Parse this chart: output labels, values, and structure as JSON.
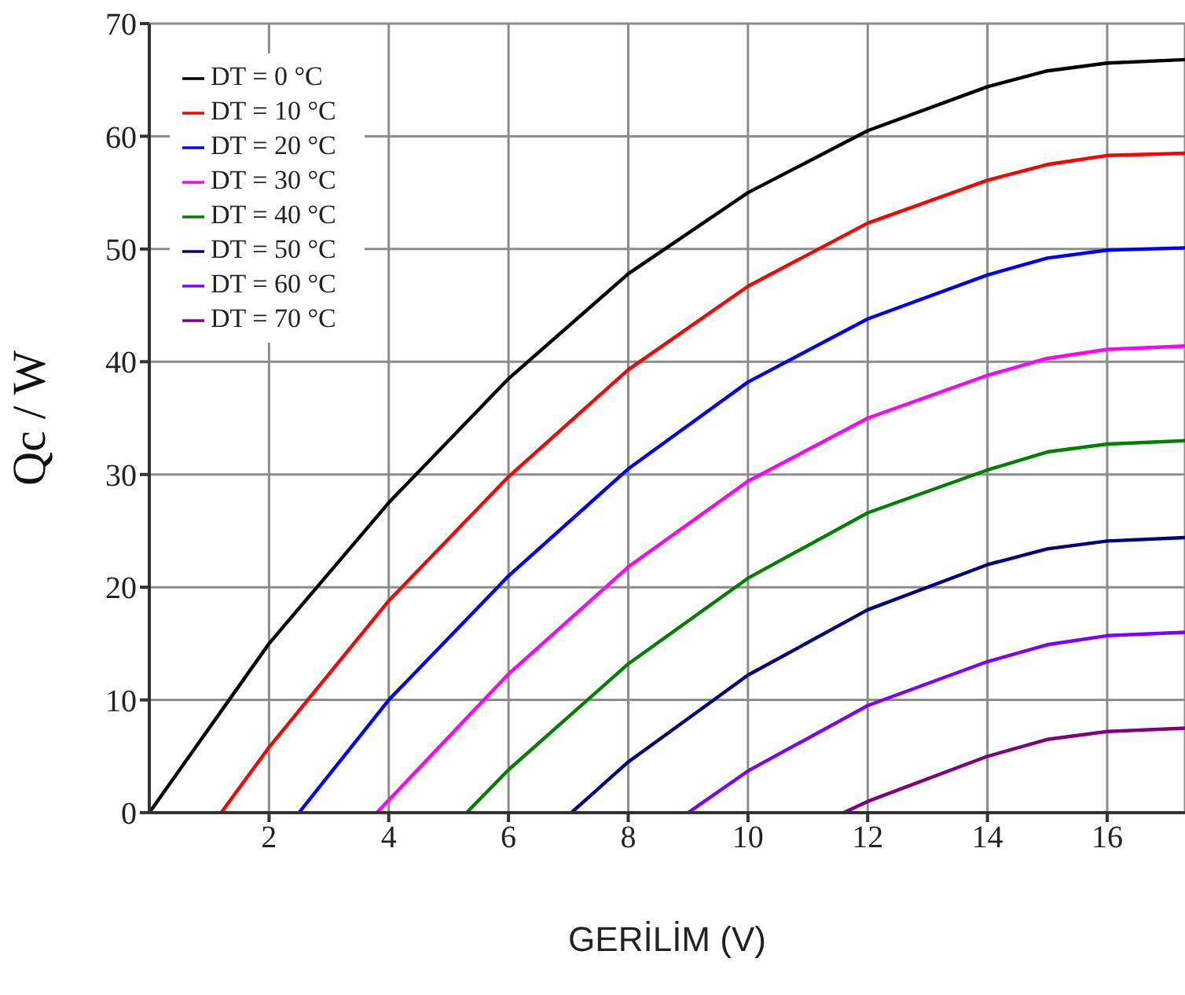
{
  "chart_data": {
    "type": "line",
    "xlabel": "GERİLİM (V)",
    "ylabel": "Qc / W",
    "xlim": [
      0,
      17.3
    ],
    "xticks": [
      2,
      4,
      6,
      8,
      10,
      12,
      14,
      16
    ],
    "ylim": [
      0,
      70
    ],
    "yticks": [
      0,
      10,
      20,
      30,
      40,
      50,
      60,
      70
    ],
    "grid": true,
    "legend": "top left",
    "marker": "none",
    "line_style": "solid",
    "series": [
      {
        "name": "DT = 0 °C",
        "color": "#000000",
        "x": [
          0,
          2,
          4,
          6,
          8,
          10,
          12,
          14,
          15,
          16,
          17.3
        ],
        "values": [
          0,
          15,
          27.5,
          38.5,
          47.8,
          55,
          60.5,
          64.4,
          65.8,
          66.5,
          66.8
        ]
      },
      {
        "name": "DT = 10 °C",
        "color": "#ff0000",
        "x": [
          1.2,
          2,
          4,
          6,
          8,
          10,
          12,
          14,
          15,
          16,
          17.3
        ],
        "values": [
          0,
          5.8,
          18.8,
          29.8,
          39.3,
          46.7,
          52.3,
          56.1,
          57.5,
          58.3,
          58.5
        ]
      },
      {
        "name": "DT = 20 °C",
        "color": "#0000ff",
        "x": [
          2.5,
          4,
          6,
          8,
          10,
          12,
          14,
          15,
          16,
          17.3
        ],
        "values": [
          0,
          10,
          21,
          30.5,
          38.2,
          43.8,
          47.7,
          49.2,
          49.9,
          50.1
        ]
      },
      {
        "name": "DT = 30 °C",
        "color": "#ff00ff",
        "x": [
          3.8,
          6,
          8,
          10,
          12,
          14,
          15,
          16,
          17.3
        ],
        "values": [
          0,
          12.3,
          21.8,
          29.4,
          35,
          38.8,
          40.3,
          41.1,
          41.4
        ]
      },
      {
        "name": "DT = 40 °C",
        "color": "#008000",
        "x": [
          5.3,
          6,
          8,
          10,
          12,
          14,
          15,
          16,
          17.3
        ],
        "values": [
          0,
          3.8,
          13.2,
          20.8,
          26.6,
          30.4,
          32,
          32.7,
          33
        ]
      },
      {
        "name": "DT = 50 °C",
        "color": "#000080",
        "x": [
          7.05,
          8,
          10,
          12,
          14,
          15,
          16,
          17.3
        ],
        "values": [
          0,
          4.5,
          12.2,
          18,
          22,
          23.4,
          24.1,
          24.4
        ]
      },
      {
        "name": "DT = 60 °C",
        "color": "#8000ff",
        "x": [
          9,
          10,
          12,
          14,
          15,
          16,
          17.3
        ],
        "values": [
          0,
          3.7,
          9.5,
          13.4,
          14.9,
          15.7,
          16
        ]
      },
      {
        "name": "DT = 70 °C",
        "color": "#800080",
        "x": [
          11.6,
          12,
          14,
          15,
          16,
          17.3
        ],
        "values": [
          0,
          1,
          5,
          6.5,
          7.2,
          7.5
        ]
      }
    ]
  }
}
